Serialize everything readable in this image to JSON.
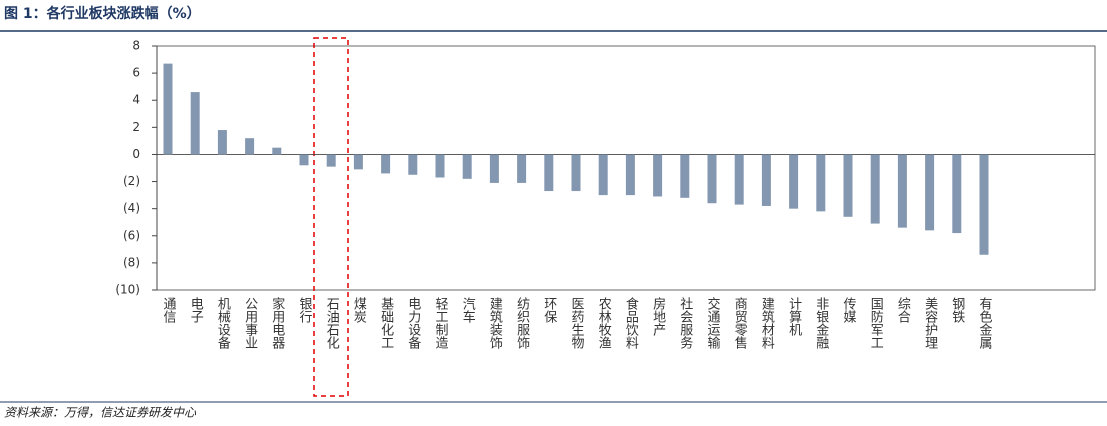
{
  "chart_data": {
    "type": "bar",
    "title": "图 1：各行业板块涨跌幅（%）",
    "source": "资料来源：万得，信达证券研发中心",
    "categories": [
      "通信",
      "电子",
      "机械设备",
      "公用事业",
      "家用电器",
      "银行",
      "石油石化",
      "煤炭",
      "基础化工",
      "电力设备",
      "轻工制造",
      "汽车",
      "建筑装饰",
      "纺织服饰",
      "环保",
      "医药生物",
      "农林牧渔",
      "食品饮料",
      "房地产",
      "社会服务",
      "交通运输",
      "商贸零售",
      "建筑材料",
      "计算机",
      "非银金融",
      "传媒",
      "国防军工",
      "综合",
      "美容护理",
      "钢铁",
      "有色金属"
    ],
    "values": [
      6.7,
      4.6,
      1.8,
      1.2,
      0.5,
      -0.8,
      -0.9,
      -1.1,
      -1.4,
      -1.5,
      -1.7,
      -1.8,
      -2.1,
      -2.1,
      -2.7,
      -2.7,
      -3.0,
      -3.0,
      -3.1,
      -3.2,
      -3.6,
      -3.7,
      -3.8,
      -4.0,
      -4.2,
      -4.6,
      -5.1,
      -5.4,
      -5.6,
      -5.8,
      -7.4
    ],
    "color": "#8497b0",
    "ylim": [
      -10,
      8
    ],
    "yticks": [
      {
        "value": -10,
        "label": "(10)"
      },
      {
        "value": -8,
        "label": "(8)"
      },
      {
        "value": -6,
        "label": "(6)"
      },
      {
        "value": -4,
        "label": "(4)"
      },
      {
        "value": -2,
        "label": "(2)"
      },
      0,
      2,
      4,
      6,
      8
    ],
    "grid": false
  }
}
